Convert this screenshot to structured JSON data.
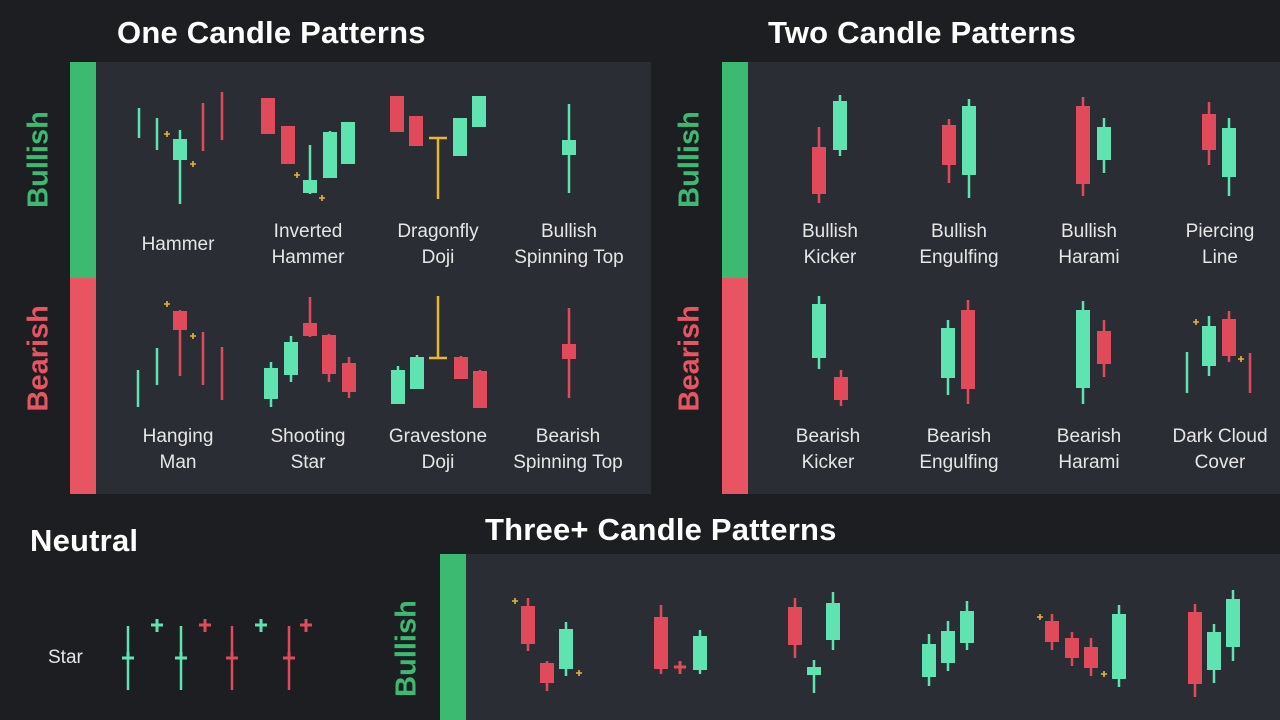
{
  "titles": {
    "one_candle": "One Candle Patterns",
    "two_candle": "Two Candle Patterns",
    "neutral": "Neutral",
    "three_candle": "Three+ Candle Patterns"
  },
  "side_labels": {
    "bullish": "Bullish",
    "bearish": "Bearish"
  },
  "one_candle": {
    "bullish": [
      "Hammer",
      "Inverted\nHammer",
      "Dragonfly\nDoji",
      "Bullish\nSpinning Top"
    ],
    "bearish": [
      "Hanging\nMan",
      "Shooting\nStar",
      "Gravestone\nDoji",
      "Bearish\nSpinning Top"
    ]
  },
  "two_candle": {
    "bullish": [
      "Bullish\nKicker",
      "Bullish\nEngulfing",
      "Bullish\nHarami",
      "Piercing\nLine"
    ],
    "bearish": [
      "Bearish\nKicker",
      "Bearish\nEngulfing",
      "Bearish\nHarami",
      "Dark Cloud\nCover"
    ]
  },
  "neutral": {
    "row_label": "Star"
  },
  "colors": {
    "background": "#1c1e21",
    "panel": "#2a2d33",
    "bullish": "#3dba71",
    "bearish": "#e85461",
    "candle_up": "#5fe3b0",
    "candle_down": "#e04a5a",
    "doji": "#e8b531",
    "marker": "#e8b531"
  }
}
